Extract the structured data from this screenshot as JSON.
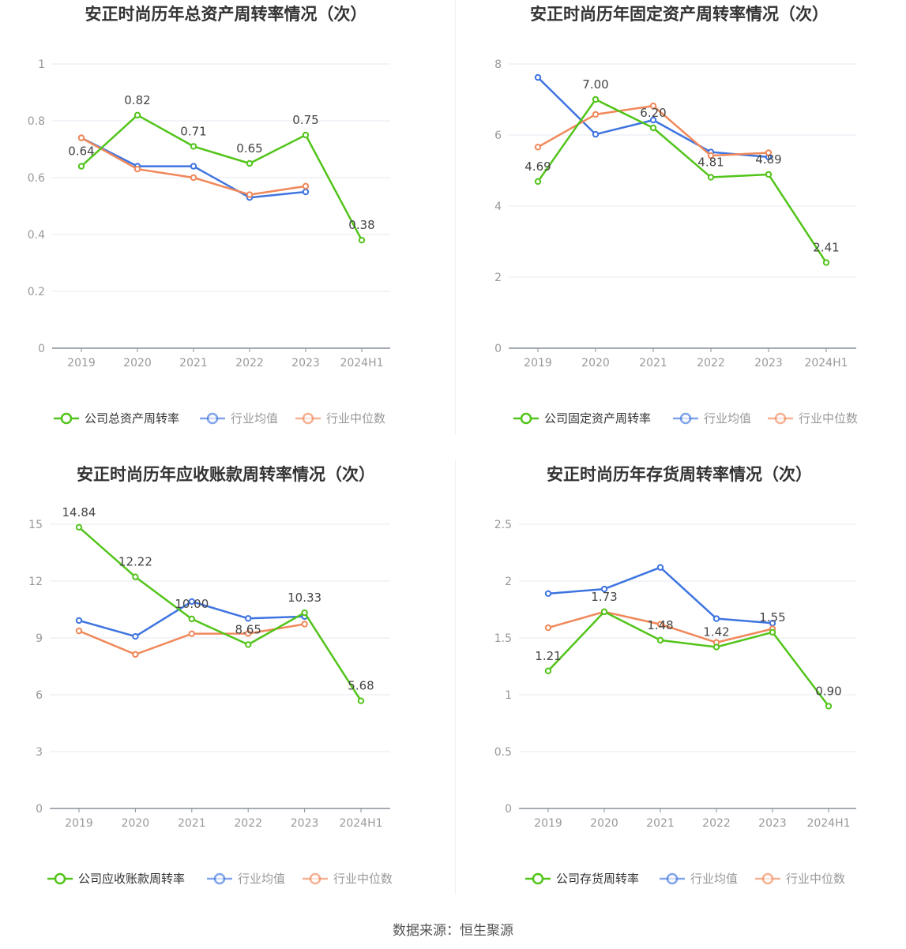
{
  "source": "数据来源：恒生聚源",
  "colors": {
    "company": "#52c41a",
    "avg": "#3e74e0",
    "median": "#f0885a"
  },
  "chart_data": [
    {
      "type": "line",
      "title": "安正时尚历年总资产周转率情况（次）",
      "categories": [
        "2019",
        "2020",
        "2021",
        "2022",
        "2023",
        "2024H1"
      ],
      "ylim": [
        0,
        1
      ],
      "yticks": [
        0,
        0.2,
        0.4,
        0.6,
        0.8,
        1
      ],
      "ytick_labels": [
        "0",
        "0.2",
        "0.4",
        "0.6",
        "0.8",
        "1"
      ],
      "grid": true,
      "legend_position": "bottom",
      "series": [
        {
          "name": "公司总资产周转率",
          "role": "company",
          "values": [
            0.64,
            0.82,
            0.71,
            0.65,
            0.75,
            0.38
          ],
          "labels": [
            "0.64",
            "0.82",
            "0.71",
            "0.65",
            "0.75",
            "0.38"
          ]
        },
        {
          "name": "行业均值",
          "role": "avg",
          "values": [
            0.74,
            0.64,
            0.64,
            0.53,
            0.55,
            null
          ]
        },
        {
          "name": "行业中位数",
          "role": "median",
          "values": [
            0.74,
            0.63,
            0.6,
            0.54,
            0.57,
            null
          ]
        }
      ]
    },
    {
      "type": "line",
      "title": "安正时尚历年固定资产周转率情况（次）",
      "categories": [
        "2019",
        "2020",
        "2021",
        "2022",
        "2023",
        "2024H1"
      ],
      "ylim": [
        0,
        8
      ],
      "yticks": [
        0,
        2,
        4,
        6,
        8
      ],
      "ytick_labels": [
        "0",
        "2",
        "4",
        "6",
        "8"
      ],
      "grid": true,
      "legend_position": "bottom",
      "series": [
        {
          "name": "公司固定资产周转率",
          "role": "company",
          "values": [
            4.69,
            7.0,
            6.2,
            4.81,
            4.89,
            2.41
          ],
          "labels": [
            "4.69",
            "7.00",
            "6.20",
            "4.81",
            "4.89",
            "2.41"
          ]
        },
        {
          "name": "行业均值",
          "role": "avg",
          "values": [
            7.62,
            6.02,
            6.42,
            5.52,
            5.38,
            null
          ]
        },
        {
          "name": "行业中位数",
          "role": "median",
          "values": [
            5.66,
            6.58,
            6.82,
            5.42,
            5.5,
            null
          ]
        }
      ]
    },
    {
      "type": "line",
      "title": "安正时尚历年应收账款周转率情况（次）",
      "categories": [
        "2019",
        "2020",
        "2021",
        "2022",
        "2023",
        "2024H1"
      ],
      "ylim": [
        0,
        15
      ],
      "yticks": [
        0,
        3,
        6,
        9,
        12,
        15
      ],
      "ytick_labels": [
        "0",
        "3",
        "6",
        "9",
        "12",
        "15"
      ],
      "grid": true,
      "legend_position": "bottom",
      "series": [
        {
          "name": "公司应收账款周转率",
          "role": "company",
          "values": [
            14.84,
            12.22,
            10.0,
            8.65,
            10.33,
            5.68
          ],
          "labels": [
            "14.84",
            "12.22",
            "10.00",
            "8.65",
            "10.33",
            "5.68"
          ]
        },
        {
          "name": "行业均值",
          "role": "avg",
          "values": [
            9.92,
            9.08,
            10.92,
            10.03,
            10.13,
            null
          ]
        },
        {
          "name": "行业中位数",
          "role": "median",
          "values": [
            9.37,
            8.13,
            9.22,
            9.23,
            9.73,
            null
          ]
        }
      ]
    },
    {
      "type": "line",
      "title": "安正时尚历年存货周转率情况（次）",
      "categories": [
        "2019",
        "2020",
        "2021",
        "2022",
        "2023",
        "2024H1"
      ],
      "ylim": [
        0,
        2.5
      ],
      "yticks": [
        0,
        0.5,
        1,
        1.5,
        2,
        2.5
      ],
      "ytick_labels": [
        "0",
        "0.5",
        "1",
        "1.5",
        "2",
        "2.5"
      ],
      "grid": true,
      "legend_position": "bottom",
      "series": [
        {
          "name": "公司存货周转率",
          "role": "company",
          "values": [
            1.21,
            1.73,
            1.48,
            1.42,
            1.55,
            0.9
          ],
          "labels": [
            "1.21",
            "1.73",
            "1.48",
            "1.42",
            "1.55",
            "0.90"
          ]
        },
        {
          "name": "行业均值",
          "role": "avg",
          "values": [
            1.89,
            1.93,
            2.12,
            1.67,
            1.63,
            null
          ]
        },
        {
          "name": "行业中位数",
          "role": "median",
          "values": [
            1.59,
            1.73,
            1.62,
            1.46,
            1.58,
            null
          ]
        }
      ]
    }
  ]
}
